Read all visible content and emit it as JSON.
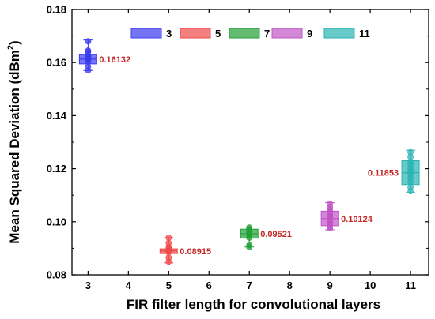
{
  "chart_data": {
    "type": "box",
    "xlabel": "FIR filter length for convolutional layers",
    "ylabel": "Mean Squared Deviation (dBm",
    "ylabel_superscript": "2",
    "ylabel_close": ")",
    "xlim": [
      2.6,
      11.45
    ],
    "ylim": [
      0.08,
      0.18
    ],
    "xticks": [
      "3",
      "4",
      "5",
      "6",
      "7",
      "8",
      "9",
      "10",
      "11"
    ],
    "yticks": [
      "0.08",
      "0.10",
      "0.12",
      "0.14",
      "0.16",
      "0.18"
    ],
    "legend_position": "top",
    "series": [
      {
        "name": "3",
        "x": 3,
        "color": "#3b3bef",
        "q1": 0.1595,
        "median": 0.1613,
        "q3": 0.163,
        "whisker_low": 0.157,
        "whisker_high": 0.1685,
        "points": [
          0.157,
          0.1585,
          0.1605,
          0.161,
          0.1615,
          0.162,
          0.1625,
          0.164,
          0.1645,
          0.168
        ],
        "mean_label": "0.16132"
      },
      {
        "name": "5",
        "x": 5,
        "color": "#ef4a4a",
        "q1": 0.088,
        "median": 0.089,
        "q3": 0.0898,
        "whisker_low": 0.0845,
        "whisker_high": 0.094,
        "points": [
          0.085,
          0.0865,
          0.0885,
          0.089,
          0.0893,
          0.0897,
          0.0905,
          0.092,
          0.094
        ],
        "mean_label": "0.08915"
      },
      {
        "name": "7",
        "x": 7,
        "color": "#22a038",
        "q1": 0.0938,
        "median": 0.0955,
        "q3": 0.0972,
        "whisker_low": 0.0905,
        "whisker_high": 0.098,
        "points": [
          0.0905,
          0.0912,
          0.094,
          0.0948,
          0.0955,
          0.096,
          0.0965,
          0.0972,
          0.0978
        ],
        "mean_label": "0.09521"
      },
      {
        "name": "9",
        "x": 9,
        "color": "#c054c6",
        "q1": 0.0985,
        "median": 0.1012,
        "q3": 0.104,
        "whisker_low": 0.097,
        "whisker_high": 0.1072,
        "points": [
          0.0975,
          0.0982,
          0.0992,
          0.1,
          0.101,
          0.1018,
          0.1025,
          0.1035,
          0.1045,
          0.1055,
          0.1068
        ],
        "mean_label": "0.10124"
      },
      {
        "name": "11",
        "x": 11,
        "color": "#2ab3b3",
        "q1": 0.114,
        "median": 0.1185,
        "q3": 0.123,
        "whisker_low": 0.111,
        "whisker_high": 0.127,
        "points": [
          0.1115,
          0.113,
          0.115,
          0.1165,
          0.118,
          0.119,
          0.12,
          0.1215,
          0.1225,
          0.1245,
          0.1262
        ],
        "mean_label": "0.11853"
      }
    ]
  }
}
